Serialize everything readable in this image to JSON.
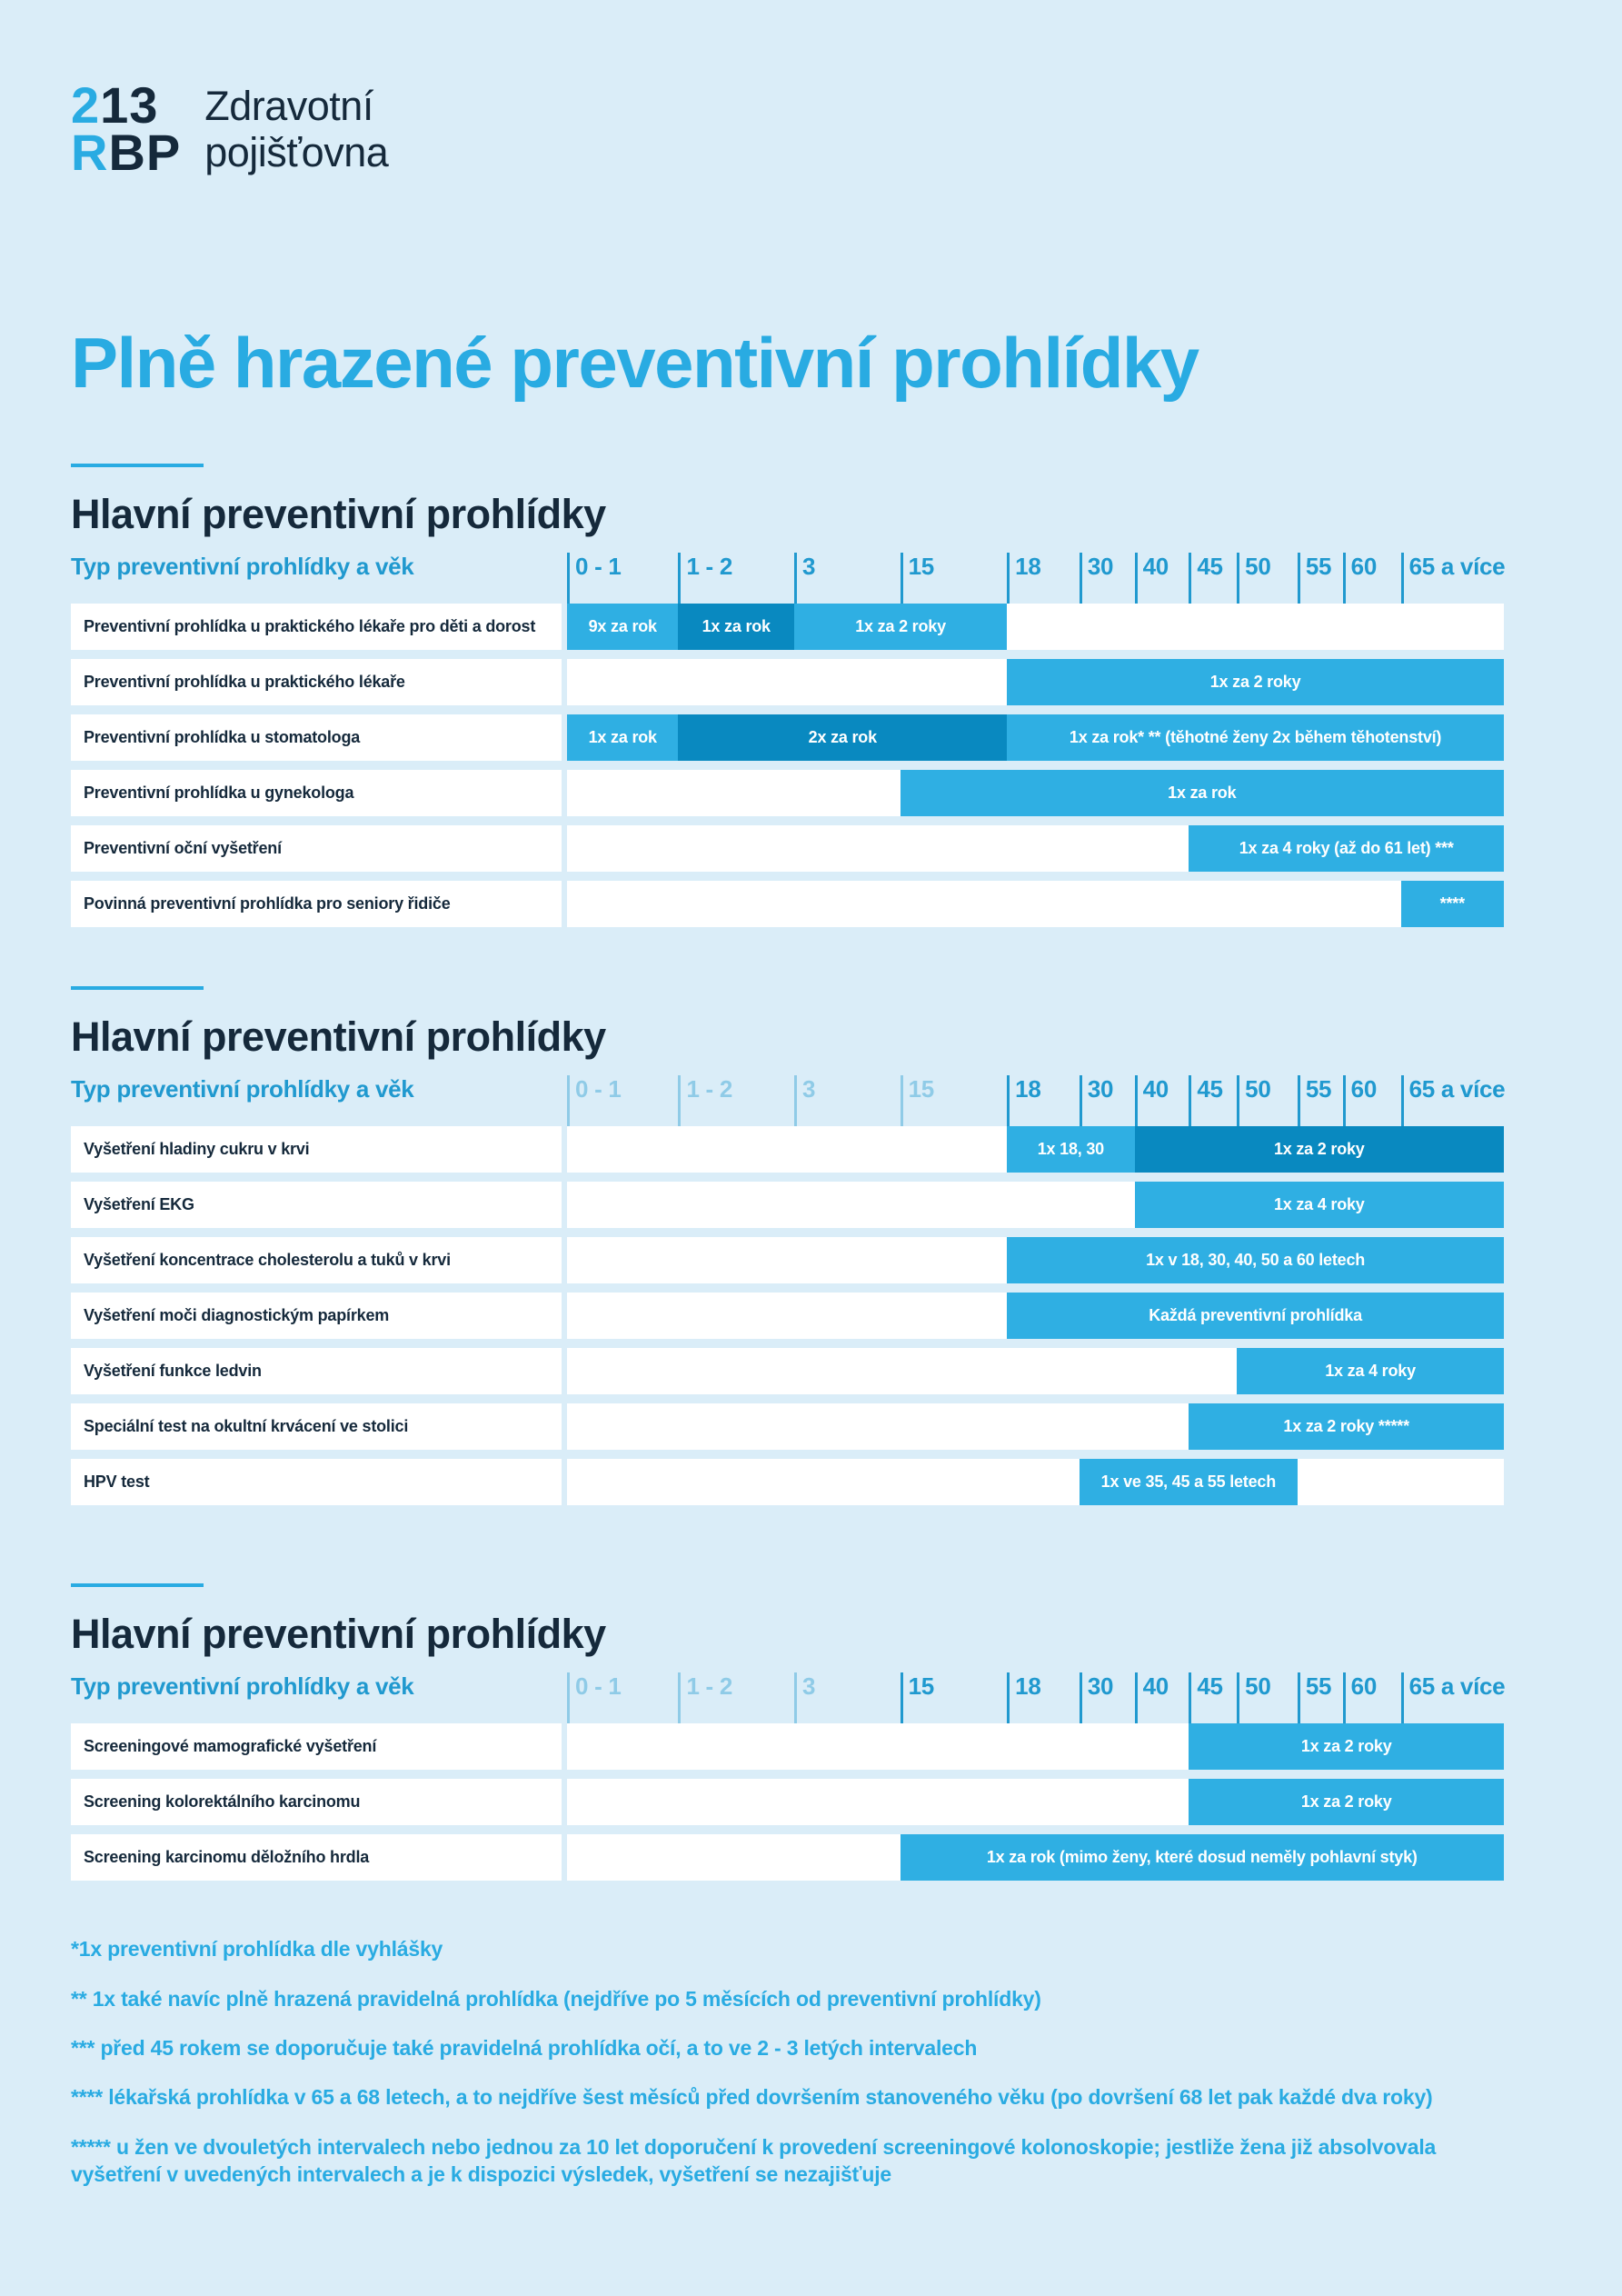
{
  "page_title": "Plně hrazené preventivní prohlídky",
  "logo": {
    "digits_accent": "2",
    "digits_dark": "13",
    "letters_accent": "R",
    "letters_dark": "BP",
    "name_line1": "Zdravotní",
    "name_line2": "pojišťovna"
  },
  "colors": {
    "background": "#DAEDF8",
    "accent_blue": "#29ABE2",
    "navy_text": "#15293B",
    "tick_blue": "#2099CF",
    "bar_light": "#2FAFE3",
    "bar_dark": "#0989C0"
  },
  "axis_label": "Typ preventivní prohlídky a věk",
  "ticks": [
    {
      "label": "0 - 1",
      "pos": 0
    },
    {
      "label": "1 - 2",
      "pos": 11.88
    },
    {
      "label": "3",
      "pos": 24.25
    },
    {
      "label": "15",
      "pos": 35.56
    },
    {
      "label": "18",
      "pos": 46.96
    },
    {
      "label": "30",
      "pos": 54.69
    },
    {
      "label": "40",
      "pos": 60.58
    },
    {
      "label": "45",
      "pos": 66.38
    },
    {
      "label": "50",
      "pos": 71.5
    },
    {
      "label": "55",
      "pos": 77.97
    },
    {
      "label": "60",
      "pos": 82.8
    },
    {
      "label": "65 a více",
      "pos": 89
    }
  ],
  "sections": [
    {
      "title": "Hlavní preventivní prohlídky",
      "dimmed_tick_count": 0,
      "rows": [
        {
          "label": "Preventivní prohlídka u praktického lékaře pro děti a dorost",
          "bars": [
            {
              "start": 0,
              "end": 11.88,
              "shade": "light",
              "text": "9x za rok"
            },
            {
              "start": 11.88,
              "end": 24.25,
              "shade": "dark",
              "text": "1x za rok"
            },
            {
              "start": 24.25,
              "end": 46.96,
              "shade": "light",
              "text": "1x za 2 roky"
            }
          ]
        },
        {
          "label": "Preventivní prohlídka u praktického lékaře",
          "bars": [
            {
              "start": 46.96,
              "end": 100,
              "shade": "light",
              "text": "1x za 2 roky"
            }
          ]
        },
        {
          "label": "Preventivní prohlídka u stomatologa",
          "bars": [
            {
              "start": 0,
              "end": 11.88,
              "shade": "light",
              "text": "1x za rok"
            },
            {
              "start": 11.88,
              "end": 46.96,
              "shade": "dark",
              "text": "2x za rok"
            },
            {
              "start": 46.96,
              "end": 100,
              "shade": "light",
              "text": "1x za rok* ** (těhotné ženy 2x během těhotenství)"
            }
          ]
        },
        {
          "label": "Preventivní prohlídka u gynekologa",
          "bars": [
            {
              "start": 35.56,
              "end": 100,
              "shade": "light",
              "text": "1x za rok"
            }
          ]
        },
        {
          "label": "Preventivní oční vyšetření",
          "bars": [
            {
              "start": 66.38,
              "end": 100,
              "shade": "light",
              "text": "1x za 4 roky (až do 61 let) ***"
            }
          ]
        },
        {
          "label": "Povinná preventivní prohlídka pro seniory řidiče",
          "bars": [
            {
              "start": 89,
              "end": 100,
              "shade": "light",
              "text": "****"
            }
          ]
        }
      ]
    },
    {
      "title": "Hlavní preventivní prohlídky",
      "dimmed_tick_count": 4,
      "rows": [
        {
          "label": "Vyšetření hladiny cukru v krvi",
          "bars": [
            {
              "start": 46.96,
              "end": 60.58,
              "shade": "light",
              "text": "1x 18, 30"
            },
            {
              "start": 60.58,
              "end": 100,
              "shade": "dark",
              "text": "1x za 2 roky"
            }
          ]
        },
        {
          "label": "Vyšetření EKG",
          "bars": [
            {
              "start": 60.58,
              "end": 100,
              "shade": "light",
              "text": "1x za 4 roky"
            }
          ]
        },
        {
          "label": "Vyšetření koncentrace cholesterolu a tuků v krvi",
          "bars": [
            {
              "start": 46.96,
              "end": 100,
              "shade": "light",
              "text": "1x v 18, 30, 40, 50 a 60 letech"
            }
          ]
        },
        {
          "label": "Vyšetření moči diagnostickým papírkem",
          "bars": [
            {
              "start": 46.96,
              "end": 100,
              "shade": "light",
              "text": "Každá preventivní prohlídka"
            }
          ]
        },
        {
          "label": "Vyšetření funkce ledvin",
          "bars": [
            {
              "start": 71.5,
              "end": 100,
              "shade": "light",
              "text": "1x za 4 roky"
            }
          ]
        },
        {
          "label": "Speciální test na okultní krvácení ve stolici",
          "bars": [
            {
              "start": 66.38,
              "end": 100,
              "shade": "light",
              "text": "1x za 2 roky *****"
            }
          ]
        },
        {
          "label": "HPV test",
          "bars": [
            {
              "start": 54.69,
              "end": 77.97,
              "shade": "light",
              "text": "1x ve 35, 45 a 55 letech"
            }
          ]
        }
      ]
    },
    {
      "title": "Hlavní preventivní prohlídky",
      "dimmed_tick_count": 3,
      "rows": [
        {
          "label": "Screeningové mamografické vyšetření",
          "bars": [
            {
              "start": 66.38,
              "end": 100,
              "shade": "light",
              "text": "1x za 2 roky"
            }
          ]
        },
        {
          "label": "Screening kolorektálního karcinomu",
          "bars": [
            {
              "start": 66.38,
              "end": 100,
              "shade": "light",
              "text": "1x za 2 roky"
            }
          ]
        },
        {
          "label": "Screening karcinomu děložního hrdla",
          "bars": [
            {
              "start": 35.56,
              "end": 100,
              "shade": "light",
              "text": "1x za rok (mimo ženy, které dosud neměly pohlavní styk)"
            }
          ]
        }
      ]
    }
  ],
  "footnotes": [
    "*1x preventivní prohlídka dle vyhlášky",
    "** 1x také navíc plně hrazená pravidelná prohlídka (nejdříve po 5 měsících od preventivní prohlídky)",
    "*** před 45 rokem se doporučuje také pravidelná prohlídka očí, a to ve 2 - 3 letých intervalech",
    "**** lékařská prohlídka v 65 a 68 letech, a to nejdříve šest měsíců před dovršením stanoveného věku (po dovršení 68 let pak každé dva roky)",
    "***** u žen ve dvouletých intervalech nebo jednou za 10 let doporučení k provedení screeningové kolonoskopie; jestliže žena již absolvovala vyšetření v uvedených intervalech a je k dispozici výsledek, vyšetření se nezajišťuje"
  ],
  "chart_data": [
    {
      "type": "table",
      "title": "Hlavní preventivní prohlídky",
      "xlabel": "Typ preventivní prohlídky a věk",
      "age_ticks": [
        "0 - 1",
        "1 - 2",
        "3",
        "15",
        "18",
        "30",
        "40",
        "45",
        "50",
        "55",
        "60",
        "65 a více"
      ],
      "rows": [
        {
          "label": "Preventivní prohlídka u praktického lékaře pro děti a dorost",
          "segments": [
            {
              "age_from": 0,
              "age_to": 1,
              "frequency": "9x za rok"
            },
            {
              "age_from": 1,
              "age_to": 3,
              "frequency": "1x za rok"
            },
            {
              "age_from": 3,
              "age_to": 18,
              "frequency": "1x za 2 roky"
            }
          ]
        },
        {
          "label": "Preventivní prohlídka u praktického lékaře",
          "segments": [
            {
              "age_from": 18,
              "age_to": "65+",
              "frequency": "1x za 2 roky"
            }
          ]
        },
        {
          "label": "Preventivní prohlídka u stomatologa",
          "segments": [
            {
              "age_from": 0,
              "age_to": 1,
              "frequency": "1x za rok"
            },
            {
              "age_from": 1,
              "age_to": 18,
              "frequency": "2x za rok"
            },
            {
              "age_from": 18,
              "age_to": "65+",
              "frequency": "1x za rok* ** (těhotné ženy 2x během těhotenství)"
            }
          ]
        },
        {
          "label": "Preventivní prohlídka u gynekologa",
          "segments": [
            {
              "age_from": 15,
              "age_to": "65+",
              "frequency": "1x za rok"
            }
          ]
        },
        {
          "label": "Preventivní oční vyšetření",
          "segments": [
            {
              "age_from": 45,
              "age_to": "65+",
              "frequency": "1x za 4 roky (až do 61 let) ***"
            }
          ]
        },
        {
          "label": "Povinná preventivní prohlídka pro seniory řidiče",
          "segments": [
            {
              "age_from": 65,
              "age_to": "65+",
              "frequency": "****"
            }
          ]
        }
      ]
    },
    {
      "type": "table",
      "title": "Hlavní preventivní prohlídky",
      "xlabel": "Typ preventivní prohlídky a věk",
      "age_ticks": [
        "0 - 1",
        "1 - 2",
        "3",
        "15",
        "18",
        "30",
        "40",
        "45",
        "50",
        "55",
        "60",
        "65 a více"
      ],
      "rows": [
        {
          "label": "Vyšetření hladiny cukru v krvi",
          "segments": [
            {
              "age_from": 18,
              "age_to": 40,
              "frequency": "1x 18, 30"
            },
            {
              "age_from": 40,
              "age_to": "65+",
              "frequency": "1x za 2 roky"
            }
          ]
        },
        {
          "label": "Vyšetření EKG",
          "segments": [
            {
              "age_from": 40,
              "age_to": "65+",
              "frequency": "1x za 4 roky"
            }
          ]
        },
        {
          "label": "Vyšetření koncentrace cholesterolu a tuků v krvi",
          "segments": [
            {
              "age_from": 18,
              "age_to": "65+",
              "frequency": "1x v 18, 30, 40, 50 a 60 letech"
            }
          ]
        },
        {
          "label": "Vyšetření moči diagnostickým papírkem",
          "segments": [
            {
              "age_from": 18,
              "age_to": "65+",
              "frequency": "Každá preventivní prohlídka"
            }
          ]
        },
        {
          "label": "Vyšetření funkce ledvin",
          "segments": [
            {
              "age_from": 50,
              "age_to": "65+",
              "frequency": "1x za 4 roky"
            }
          ]
        },
        {
          "label": "Speciální test na okultní krvácení ve stolici",
          "segments": [
            {
              "age_from": 45,
              "age_to": "65+",
              "frequency": "1x za 2 roky *****"
            }
          ]
        },
        {
          "label": "HPV test",
          "segments": [
            {
              "age_from": 30,
              "age_to": 55,
              "frequency": "1x ve 35, 45 a 55 letech"
            }
          ]
        }
      ]
    },
    {
      "type": "table",
      "title": "Hlavní preventivní prohlídky",
      "xlabel": "Typ preventivní prohlídky a věk",
      "age_ticks": [
        "0 - 1",
        "1 - 2",
        "3",
        "15",
        "18",
        "30",
        "40",
        "45",
        "50",
        "55",
        "60",
        "65 a více"
      ],
      "rows": [
        {
          "label": "Screeningové mamografické vyšetření",
          "segments": [
            {
              "age_from": 45,
              "age_to": "65+",
              "frequency": "1x za 2 roky"
            }
          ]
        },
        {
          "label": "Screening kolorektálního karcinomu",
          "segments": [
            {
              "age_from": 45,
              "age_to": "65+",
              "frequency": "1x za 2 roky"
            }
          ]
        },
        {
          "label": "Screening karcinomu děložního hrdla",
          "segments": [
            {
              "age_from": 15,
              "age_to": "65+",
              "frequency": "1x za rok (mimo ženy, které dosud neměly pohlavní styk)"
            }
          ]
        }
      ]
    }
  ]
}
